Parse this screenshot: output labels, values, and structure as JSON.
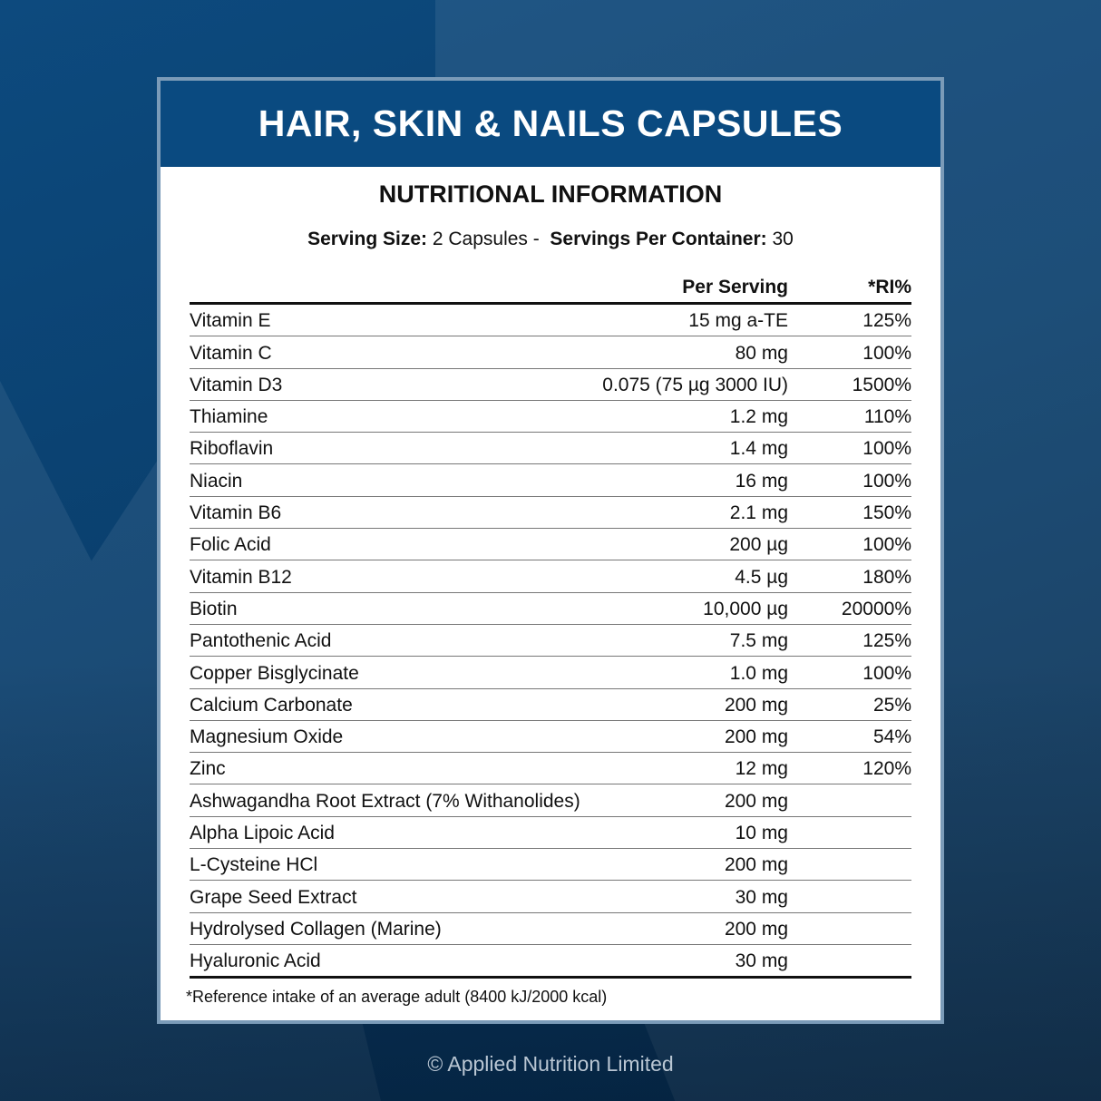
{
  "title": "HAIR, SKIN & NAILS CAPSULES",
  "subtitle": "NUTRITIONAL INFORMATION",
  "serving": {
    "size_label": "Serving Size:",
    "size_value": "2 Capsules -",
    "per_container_label": "Servings Per Container:",
    "per_container_value": "30"
  },
  "columns": {
    "per_serving": "Per Serving",
    "ri": "*RI%"
  },
  "rows": [
    {
      "name": "Vitamin E",
      "amount": "15 mg a-TE",
      "ri": "125%"
    },
    {
      "name": "Vitamin C",
      "amount": "80 mg",
      "ri": "100%"
    },
    {
      "name": "Vitamin D3",
      "amount": "0.075 (75 µg 3000 IU)",
      "ri": "1500%"
    },
    {
      "name": "Thiamine",
      "amount": "1.2 mg",
      "ri": "110%"
    },
    {
      "name": "Riboflavin",
      "amount": "1.4 mg",
      "ri": "100%"
    },
    {
      "name": "Niacin",
      "amount": "16 mg",
      "ri": "100%"
    },
    {
      "name": "Vitamin B6",
      "amount": "2.1 mg",
      "ri": "150%"
    },
    {
      "name": "Folic Acid",
      "amount": "200 µg",
      "ri": "100%"
    },
    {
      "name": "Vitamin B12",
      "amount": "4.5 µg",
      "ri": "180%"
    },
    {
      "name": "Biotin",
      "amount": "10,000 µg",
      "ri": "20000%"
    },
    {
      "name": "Pantothenic Acid",
      "amount": "7.5 mg",
      "ri": "125%"
    },
    {
      "name": "Copper Bisglycinate",
      "amount": "1.0 mg",
      "ri": "100%"
    },
    {
      "name": "Calcium Carbonate",
      "amount": "200 mg",
      "ri": "25%"
    },
    {
      "name": "Magnesium Oxide",
      "amount": "200 mg",
      "ri": "54%"
    },
    {
      "name": "Zinc",
      "amount": "12 mg",
      "ri": "120%"
    },
    {
      "name": "Ashwagandha Root Extract (7% Withanolides)",
      "amount": "200 mg",
      "ri": ""
    },
    {
      "name": "Alpha Lipoic Acid",
      "amount": "10 mg",
      "ri": ""
    },
    {
      "name": "L-Cysteine HCl",
      "amount": "200 mg",
      "ri": ""
    },
    {
      "name": "Grape Seed Extract",
      "amount": "30 mg",
      "ri": ""
    },
    {
      "name": "Hydrolysed Collagen (Marine)",
      "amount": "200 mg",
      "ri": ""
    },
    {
      "name": "Hyaluronic Acid",
      "amount": "30 mg",
      "ri": ""
    }
  ],
  "footnote": "*Reference intake of an average adult (8400 kJ/2000 kcal)",
  "copyright": "© Applied Nutrition Limited",
  "colors": {
    "header": "#0a4a80",
    "background": "#0a3f6d",
    "border": "#7b9bb8"
  }
}
